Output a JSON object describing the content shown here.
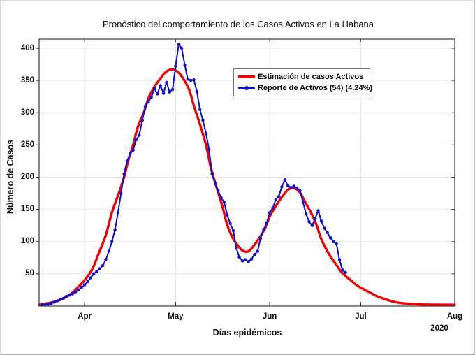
{
  "figure": {
    "year_label": "2020"
  },
  "chart_data": {
    "type": "line",
    "title": "Pronóstico del comportamiento de los Casos Activos en La Habana",
    "xlabel": "Días epidémicos",
    "ylabel": "Número de Casos",
    "ylim": [
      0,
      400
    ],
    "y_ticks": [
      50,
      100,
      150,
      200,
      250,
      300,
      350,
      400
    ],
    "x_tick_labels": [
      "Apr",
      "May",
      "Jun",
      "Jul",
      "Aug"
    ],
    "x_tick_days": [
      15,
      45,
      76,
      106,
      137
    ],
    "xlim_days": [
      0,
      137
    ],
    "x_unit_note": "day 0 = left axis edge (mid-March 2020), months shown Apr-Aug 2020",
    "grid": true,
    "legend_position": "upper-center-inside",
    "colors": {
      "estimation": "#f00000",
      "report": "#0d0dd6",
      "grid": "#e4e4e4",
      "axis": "#3a3a3a",
      "text": "#111111"
    },
    "series": [
      {
        "name": "Estimación de casos Activos",
        "style": "smooth-thick",
        "points_day_value": [
          [
            0,
            2
          ],
          [
            3.5,
            5
          ],
          [
            7,
            10
          ],
          [
            10.5,
            19
          ],
          [
            12.5,
            28
          ],
          [
            15,
            40
          ],
          [
            17.5,
            57
          ],
          [
            19.5,
            80
          ],
          [
            22,
            110
          ],
          [
            24,
            145
          ],
          [
            26.5,
            178
          ],
          [
            28,
            200
          ],
          [
            29.5,
            228
          ],
          [
            31,
            250
          ],
          [
            32.5,
            277
          ],
          [
            34.5,
            300
          ],
          [
            36,
            322
          ],
          [
            38,
            340
          ],
          [
            40,
            353
          ],
          [
            41.5,
            362
          ],
          [
            43.5,
            367
          ],
          [
            45.5,
            364
          ],
          [
            47.5,
            353
          ],
          [
            49.5,
            335
          ],
          [
            51,
            311
          ],
          [
            53,
            282
          ],
          [
            55,
            250
          ],
          [
            56.5,
            217
          ],
          [
            58.5,
            184
          ],
          [
            60.5,
            153
          ],
          [
            62,
            126
          ],
          [
            64,
            104
          ],
          [
            66,
            91
          ],
          [
            67.5,
            85
          ],
          [
            69,
            85
          ],
          [
            70.5,
            92
          ],
          [
            72.5,
            105
          ],
          [
            74.5,
            121
          ],
          [
            76,
            139
          ],
          [
            78,
            155
          ],
          [
            80,
            169
          ],
          [
            81.5,
            178
          ],
          [
            83,
            183
          ],
          [
            84.5,
            182
          ],
          [
            86,
            176
          ],
          [
            87.5,
            163
          ],
          [
            89.5,
            146
          ],
          [
            91.5,
            125
          ],
          [
            93,
            104
          ],
          [
            95.5,
            81
          ],
          [
            98,
            64
          ],
          [
            100,
            51
          ],
          [
            102.5,
            41
          ],
          [
            104.5,
            33
          ],
          [
            107,
            26
          ],
          [
            109.5,
            20
          ],
          [
            111.5,
            15
          ],
          [
            114.5,
            10
          ],
          [
            117.5,
            6
          ],
          [
            121,
            4
          ],
          [
            124.5,
            2.8
          ],
          [
            129,
            2.2
          ],
          [
            137,
            2
          ]
        ]
      },
      {
        "name": "Reporte de Activos (54) (4.24%)",
        "style": "line-markers",
        "start_day": 1,
        "daily_values": [
          2,
          2,
          3,
          4,
          6,
          8,
          10,
          12,
          15,
          17,
          19,
          22,
          25,
          29,
          33,
          38,
          44,
          50,
          54,
          58,
          63,
          72,
          85,
          100,
          118,
          145,
          175,
          205,
          225,
          237,
          242,
          258,
          265,
          288,
          310,
          317,
          324,
          338,
          329,
          342,
          330,
          347,
          332,
          336,
          372,
          406,
          400,
          374,
          352,
          350,
          351,
          333,
          305,
          288,
          268,
          243,
          205,
          190,
          179,
          168,
          161,
          141,
          128,
          117,
          90,
          76,
          70,
          72,
          69,
          73,
          80,
          85,
          105,
          119,
          129,
          145,
          152,
          165,
          170,
          185,
          196,
          187,
          184,
          186,
          183,
          179,
          161,
          143,
          131,
          125,
          136,
          148,
          132,
          121,
          114,
          106,
          100,
          97,
          72,
          56,
          52
        ]
      }
    ]
  }
}
